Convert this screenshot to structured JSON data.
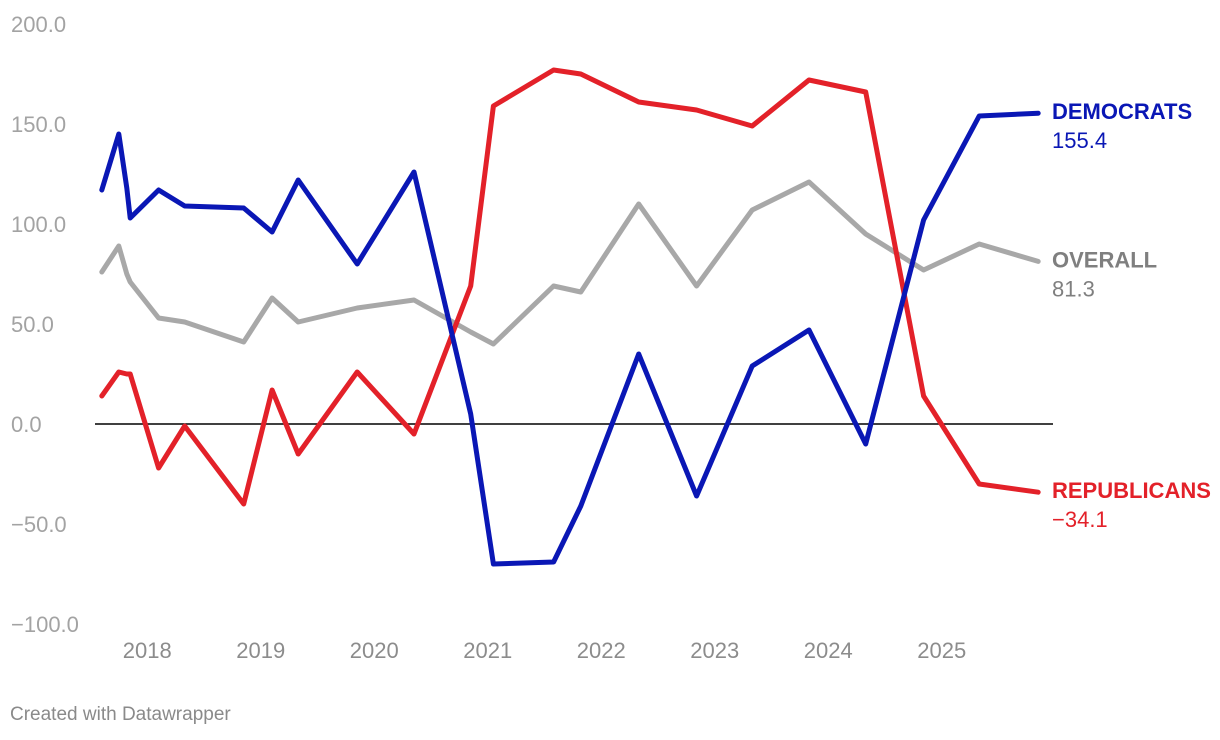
{
  "chart_data": {
    "type": "line",
    "ylim": [
      -100,
      200
    ],
    "yticks": [
      -100,
      -50,
      0,
      50,
      100,
      150,
      200
    ],
    "ytick_labels": [
      "−100.0",
      "−50.0",
      "0.0",
      "50.0",
      "100.0",
      "150.0",
      "200.0"
    ],
    "xlim": [
      2017.54,
      2025.98
    ],
    "xticks": [
      2018,
      2019,
      2020,
      2021,
      2022,
      2023,
      2024,
      2025
    ],
    "xtick_labels": [
      "2018",
      "2019",
      "2020",
      "2021",
      "2022",
      "2023",
      "2024",
      "2025"
    ],
    "x": [
      2017.6,
      2017.75,
      2017.82,
      2017.85,
      2018.1,
      2018.33,
      2018.85,
      2019.1,
      2019.33,
      2019.85,
      2020.35,
      2020.85,
      2021.05,
      2021.58,
      2021.82,
      2022.33,
      2022.84,
      2023.33,
      2023.83,
      2024.33,
      2024.84,
      2025.33,
      2025.85
    ],
    "series": [
      {
        "name": "DEMOCRATS",
        "value_label": "155.4",
        "color": "#0a17b5",
        "values": [
          117,
          145,
          118,
          103,
          117,
          109,
          108,
          96,
          122,
          80,
          126,
          5,
          -70,
          -69,
          -41,
          35,
          -36,
          29,
          47,
          -10,
          102,
          154,
          155.4
        ]
      },
      {
        "name": "REPUBLICANS",
        "value_label": "−34.1",
        "color": "#e32129",
        "values": [
          14,
          26,
          25,
          25,
          -22,
          -1,
          -40,
          17,
          -15,
          26,
          -5,
          69,
          159,
          177,
          175,
          161,
          157,
          149,
          172,
          166,
          14,
          -30,
          -34.1
        ]
      },
      {
        "name": "OVERALL",
        "value_label": "81.3",
        "color": "#a8a8a8",
        "label_color": "#7f7f7f",
        "values": [
          76,
          89,
          75,
          71,
          53,
          51,
          41,
          63,
          51,
          58,
          62,
          46,
          40,
          69,
          66,
          110,
          69,
          107,
          121,
          95,
          77,
          90,
          81.3
        ]
      }
    ],
    "zero_line": true,
    "grid": false
  },
  "credit": "Created with Datawrapper"
}
